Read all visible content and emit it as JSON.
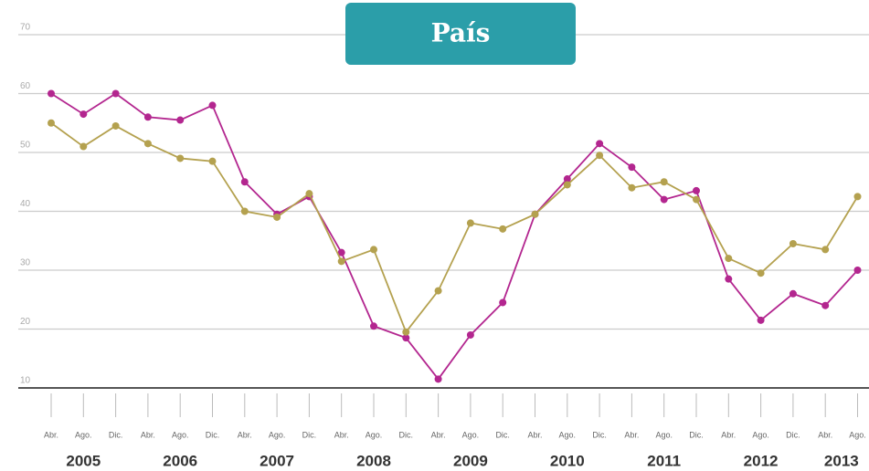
{
  "chart_data": {
    "type": "line",
    "title": "País",
    "categories": [
      "Abr.",
      "Ago.",
      "Dic.",
      "Abr.",
      "Ago.",
      "Dic.",
      "Abr.",
      "Ago.",
      "Dic.",
      "Abr.",
      "Ago.",
      "Dic.",
      "Abr.",
      "Ago.",
      "Dic.",
      "Abr.",
      "Ago.",
      "Dic.",
      "Abr.",
      "Ago.",
      "Dic.",
      "Abr.",
      "Ago.",
      "Dic.",
      "Abr.",
      "Ago."
    ],
    "year_labels": [
      "2005",
      "2006",
      "2007",
      "2008",
      "2009",
      "2010",
      "2011",
      "2012",
      "2013"
    ],
    "series": [
      {
        "color": "#b3268f",
        "values": [
          60,
          56.5,
          60,
          56,
          55.5,
          58,
          45,
          39.5,
          42.5,
          33,
          20.5,
          18.5,
          11.5,
          19,
          24.5,
          39.5,
          45.5,
          51.5,
          47.5,
          42,
          43.5,
          28.5,
          21.5,
          26,
          24,
          30
        ]
      },
      {
        "color": "#b4a14f",
        "values": [
          55,
          51,
          54.5,
          51.5,
          49,
          48.5,
          40,
          39,
          43,
          31.5,
          33.5,
          19.5,
          26.5,
          38,
          37,
          39.5,
          44.5,
          49.5,
          44,
          45,
          42,
          32,
          29.5,
          34.5,
          33.5,
          42.5
        ]
      }
    ],
    "ylim": [
      10,
      70
    ],
    "yticks": [
      10,
      20,
      30,
      40,
      50,
      60,
      70
    ],
    "grid": true
  }
}
